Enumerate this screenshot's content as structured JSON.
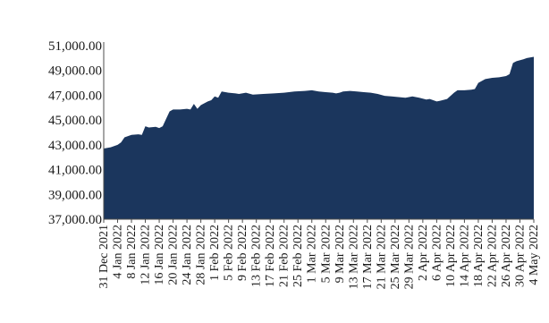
{
  "chart_data": {
    "type": "area",
    "title": "",
    "xlabel": "",
    "ylabel": "",
    "ylim": [
      37000,
      51000
    ],
    "y_ticks": [
      "37,000.00",
      "39,000.00",
      "41,000.00",
      "43,000.00",
      "45,000.00",
      "47,000.00",
      "49,000.00",
      "51,000.00"
    ],
    "y_tick_values": [
      37000,
      39000,
      41000,
      43000,
      45000,
      47000,
      49000,
      51000
    ],
    "x_tick_labels": [
      "31 Dec 2021",
      "4 Jan 2022",
      "8 Jan 2022",
      "12 Jan 2022",
      "16 Jan 2022",
      "20 Jan 2022",
      "24 Jan 2022",
      "28 Jan 2022",
      "1 Feb 2022",
      "5 Feb 2022",
      "9 Feb 2022",
      "13 Feb 2022",
      "17 Feb 2022",
      "21 Feb 2022",
      "25 Feb 2022",
      "1 Mar 2022",
      "5 Mar 2022",
      "9 Mar 2022",
      "13 Mar 2022",
      "17 Mar 2022",
      "21 Mar 2022",
      "25 Mar 2022",
      "29 Mar 2022",
      "2 Apr 2022",
      "6 Apr 2022",
      "10 Apr 2022",
      "14 Apr 2022",
      "18 Apr 2022",
      "22 Apr 2022",
      "26 Apr 2022",
      "30 Apr 2022",
      "4 May 2022"
    ],
    "grid": false,
    "legend": "none",
    "series": [
      {
        "color": "#1b365d",
        "x": [
          "2021-12-31",
          "2022-01-02",
          "2022-01-03",
          "2022-01-04",
          "2022-01-05",
          "2022-01-06",
          "2022-01-08",
          "2022-01-10",
          "2022-01-11",
          "2022-01-12",
          "2022-01-13",
          "2022-01-15",
          "2022-01-16",
          "2022-01-17",
          "2022-01-18",
          "2022-01-19",
          "2022-01-20",
          "2022-01-22",
          "2022-01-24",
          "2022-01-25",
          "2022-01-26",
          "2022-01-27",
          "2022-01-28",
          "2022-01-30",
          "2022-01-31",
          "2022-02-01",
          "2022-02-02",
          "2022-02-03",
          "2022-02-05",
          "2022-02-07",
          "2022-02-08",
          "2022-02-10",
          "2022-02-12",
          "2022-02-15",
          "2022-02-18",
          "2022-02-21",
          "2022-02-24",
          "2022-02-27",
          "2022-03-01",
          "2022-03-03",
          "2022-03-05",
          "2022-03-07",
          "2022-03-08",
          "2022-03-09",
          "2022-03-10",
          "2022-03-12",
          "2022-03-14",
          "2022-03-16",
          "2022-03-18",
          "2022-03-20",
          "2022-03-22",
          "2022-03-24",
          "2022-03-26",
          "2022-03-28",
          "2022-03-30",
          "2022-04-01",
          "2022-04-03",
          "2022-04-04",
          "2022-04-05",
          "2022-04-06",
          "2022-04-07",
          "2022-04-09",
          "2022-04-11",
          "2022-04-12",
          "2022-04-14",
          "2022-04-16",
          "2022-04-17",
          "2022-04-18",
          "2022-04-20",
          "2022-04-22",
          "2022-04-24",
          "2022-04-26",
          "2022-04-27",
          "2022-04-28",
          "2022-04-29",
          "2022-05-01",
          "2022-05-02",
          "2022-05-04"
        ],
        "values": [
          42700,
          42800,
          42900,
          43000,
          43200,
          43600,
          43800,
          43850,
          43800,
          44500,
          44400,
          44450,
          44350,
          44500,
          45100,
          45700,
          45850,
          45850,
          45900,
          45850,
          46300,
          45900,
          46200,
          46500,
          46600,
          46900,
          46800,
          47300,
          47200,
          47150,
          47100,
          47200,
          47050,
          47100,
          47150,
          47200,
          47300,
          47350,
          47400,
          47300,
          47250,
          47200,
          47150,
          47200,
          47300,
          47350,
          47300,
          47250,
          47200,
          47100,
          46950,
          46900,
          46850,
          46800,
          46900,
          46800,
          46650,
          46700,
          46600,
          46500,
          46550,
          46700,
          47200,
          47400,
          47400,
          47450,
          47500,
          48000,
          48300,
          48400,
          48450,
          48550,
          48700,
          49600,
          49750,
          49900,
          50000,
          50100
        ]
      }
    ]
  }
}
